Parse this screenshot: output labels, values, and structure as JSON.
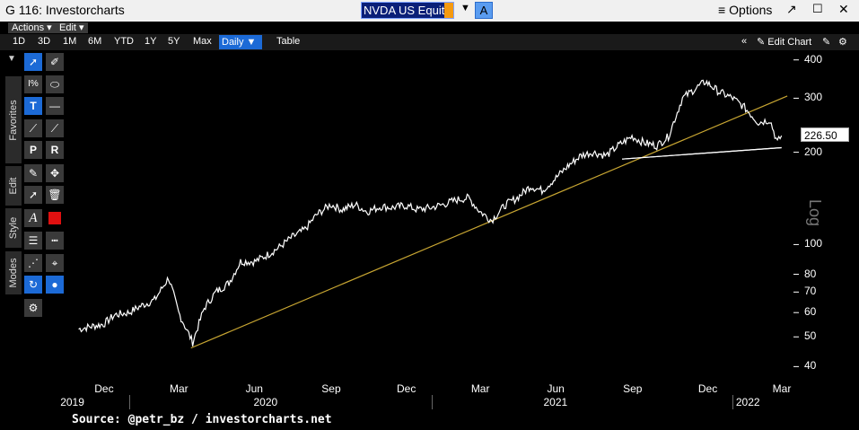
{
  "window": {
    "title": "G 116: Investorcharts",
    "ticker": "NVDA US Equity",
    "a_button": "A",
    "options_label": "Options"
  },
  "menus": [
    "Actions",
    "Edit"
  ],
  "toolbar": {
    "periods": [
      "1D",
      "3D",
      "1M",
      "6M",
      "YTD",
      "1Y",
      "5Y",
      "Max"
    ],
    "frequency": "Daily",
    "table_label": "Table",
    "edit_chart_label": "Edit Chart"
  },
  "side_tabs": [
    "Favorites",
    "Edit",
    "Style",
    "Modes"
  ],
  "chart_data": {
    "type": "line",
    "series": [
      {
        "x": [
          "2019-11-01",
          "2019-11-15",
          "2019-12-01",
          "2019-12-15",
          "2020-01-01",
          "2020-01-15",
          "2020-02-01",
          "2020-02-18",
          "2020-03-01",
          "2020-03-18",
          "2020-04-01",
          "2020-04-15",
          "2020-05-01",
          "2020-05-15",
          "2020-06-01",
          "2020-06-15",
          "2020-07-01",
          "2020-07-15",
          "2020-08-01",
          "2020-08-15",
          "2020-09-01",
          "2020-09-15",
          "2020-10-01",
          "2020-10-15",
          "2020-11-01",
          "2020-11-15",
          "2020-12-01",
          "2020-12-15",
          "2021-01-01",
          "2021-01-15",
          "2021-02-01",
          "2021-02-15",
          "2021-03-01",
          "2021-03-15",
          "2021-04-01",
          "2021-04-15",
          "2021-05-01",
          "2021-05-15",
          "2021-06-01",
          "2021-06-15",
          "2021-07-01",
          "2021-07-15",
          "2021-08-01",
          "2021-08-15",
          "2021-09-01",
          "2021-09-15",
          "2021-10-01",
          "2021-10-15",
          "2021-11-01",
          "2021-11-15",
          "2021-11-29",
          "2021-12-15",
          "2022-01-01",
          "2022-01-15",
          "2022-02-01",
          "2022-02-15",
          "2022-02-24",
          "2022-03-01"
        ],
        "y": [
          53,
          54,
          55,
          59,
          60,
          63,
          66,
          78,
          60,
          48,
          62,
          70,
          75,
          88,
          88,
          92,
          98,
          105,
          112,
          125,
          135,
          130,
          135,
          128,
          133,
          132,
          134,
          130,
          132,
          135,
          140,
          142,
          128,
          120,
          135,
          142,
          155,
          150,
          165,
          180,
          195,
          200,
          195,
          210,
          225,
          215,
          210,
          225,
          300,
          320,
          340,
          315,
          300,
          280,
          250,
          255,
          215,
          226.5
        ]
      }
    ],
    "y_scale": "log",
    "y_ticks": [
      40,
      50,
      60,
      70,
      80,
      100,
      200,
      300,
      400
    ],
    "ylim": [
      36,
      430
    ],
    "last_price": "226.50",
    "y_axis_mode": "Log",
    "x_month_labels": [
      "Dec",
      "Mar",
      "Jun",
      "Sep",
      "Dec",
      "Mar",
      "Jun",
      "Sep",
      "Dec",
      "Mar"
    ],
    "x_year_labels": [
      "2019",
      "2020",
      "2021",
      "2022"
    ],
    "trendlines": [
      {
        "from": [
          "2020-03-16",
          46
        ],
        "to": [
          "2022-03-08",
          305
        ],
        "color": "#c8a632"
      },
      {
        "from": [
          "2021-08-20",
          190
        ],
        "to": [
          "2022-03-01",
          207
        ],
        "color": "#ffffff"
      },
      {
        "from": [
          "2021-08-20",
          190
        ],
        "to": [
          "2022-03-01",
          207
        ],
        "color": "#ffffff"
      }
    ],
    "grid": false,
    "legend": "none"
  },
  "source": "Source: @petr_bz / investorcharts.net",
  "colors": {
    "accent": "#1c6ad6",
    "trend": "#c8a632",
    "ticker_cursor": "#f59a10"
  }
}
